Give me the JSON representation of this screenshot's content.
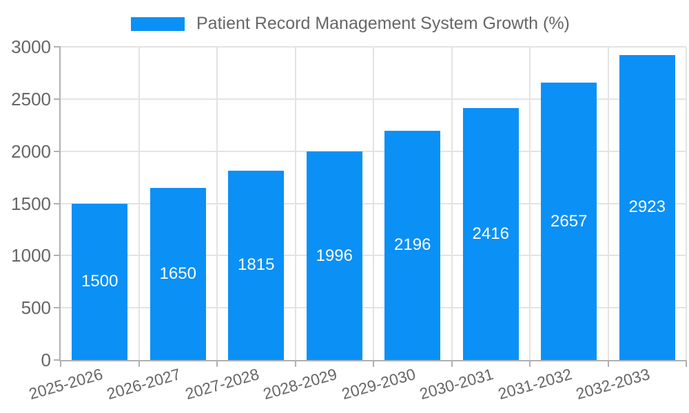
{
  "chart_data": {
    "type": "bar",
    "title": "Patient Record Management System Growth (%)",
    "categories": [
      "2025-2026",
      "2026-2027",
      "2027-2028",
      "2028-2029",
      "2029-2030",
      "2030-2031",
      "2031-2032",
      "2032-2033"
    ],
    "values": [
      1500,
      1650,
      1815,
      1996,
      2196,
      2416,
      2657,
      2923
    ],
    "ylim": [
      0,
      3000
    ],
    "yticks": [
      0,
      500,
      1000,
      1500,
      2000,
      2500,
      3000
    ],
    "grid": true,
    "legend_position": "top-center",
    "xlabel": "",
    "ylabel": "",
    "bar_color": "#0b90f5",
    "value_label_color": "#ffffff"
  },
  "colors": {
    "grid": "#e3e3e3",
    "axis": "#b0b0b0",
    "tick_text": "#666666",
    "background": "#ffffff"
  }
}
